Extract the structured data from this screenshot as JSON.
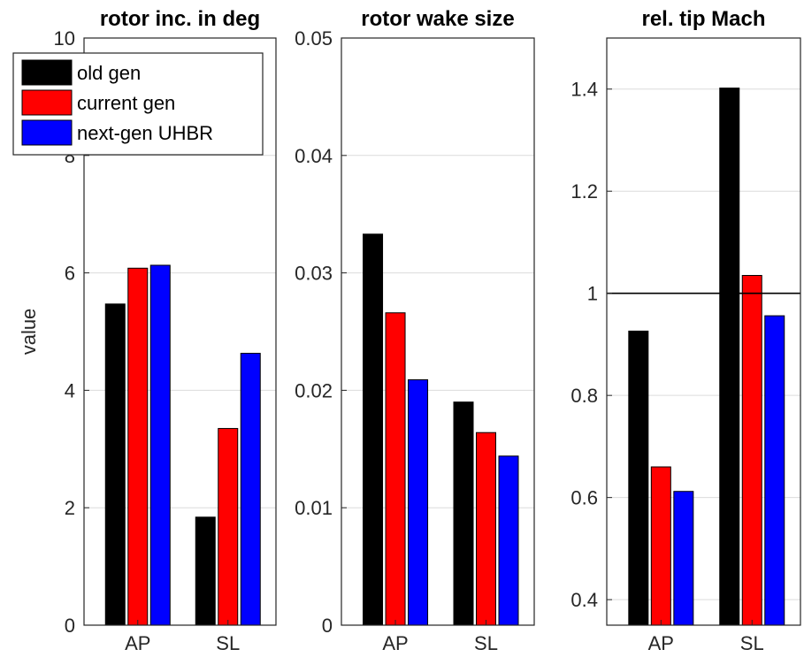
{
  "chart_data": [
    {
      "type": "bar",
      "title": "rotor inc. in deg",
      "ylabel": "value",
      "categories": [
        "AP",
        "SL"
      ],
      "ylim": [
        0,
        10
      ],
      "yticks": [
        0,
        2,
        4,
        6,
        8,
        10
      ],
      "grid": true,
      "series": [
        {
          "name": "old gen",
          "color": "#000000",
          "values": [
            5.47,
            1.84
          ]
        },
        {
          "name": "current gen",
          "color": "#ff0000",
          "values": [
            6.08,
            3.35
          ]
        },
        {
          "name": "next-gen UHBR",
          "color": "#0000ff",
          "values": [
            6.13,
            4.63
          ]
        }
      ],
      "legend_position": "top-left"
    },
    {
      "type": "bar",
      "title": "rotor wake size",
      "ylabel": "",
      "categories": [
        "AP",
        "SL"
      ],
      "ylim": [
        0,
        0.05
      ],
      "yticks": [
        0,
        0.01,
        0.02,
        0.03,
        0.04,
        0.05
      ],
      "grid": true,
      "series": [
        {
          "name": "old gen",
          "color": "#000000",
          "values": [
            0.0333,
            0.019
          ]
        },
        {
          "name": "current gen",
          "color": "#ff0000",
          "values": [
            0.0266,
            0.0164
          ]
        },
        {
          "name": "next-gen UHBR",
          "color": "#0000ff",
          "values": [
            0.0209,
            0.0144
          ]
        }
      ]
    },
    {
      "type": "bar",
      "title": "rel. tip Mach",
      "ylabel": "",
      "categories": [
        "AP",
        "SL"
      ],
      "ylim": [
        0.35,
        1.5
      ],
      "yticks": [
        0.4,
        0.6,
        0.8,
        1,
        1.2,
        1.4
      ],
      "grid": true,
      "reference_line": 1,
      "series": [
        {
          "name": "old gen",
          "color": "#000000",
          "values": [
            0.926,
            1.402
          ]
        },
        {
          "name": "current gen",
          "color": "#ff0000",
          "values": [
            0.66,
            1.035
          ]
        },
        {
          "name": "next-gen UHBR",
          "color": "#0000ff",
          "values": [
            0.612,
            0.956
          ]
        }
      ]
    }
  ]
}
